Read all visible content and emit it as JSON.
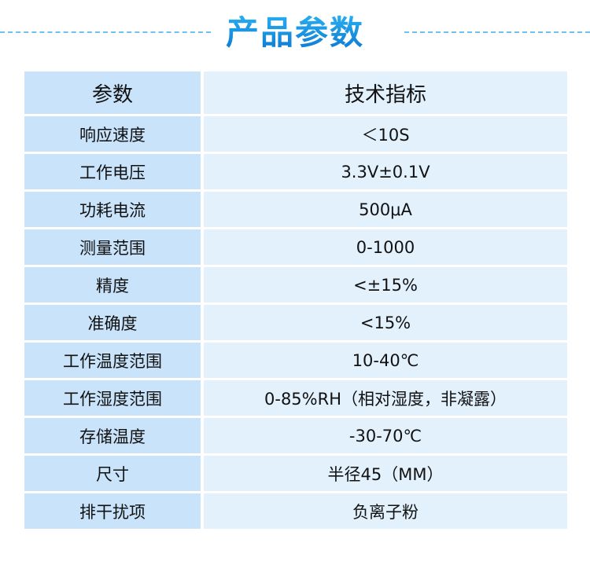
{
  "title": "产品参数",
  "colors": {
    "title": "#1a8fe0",
    "key_cell": "#c8e3fa",
    "value_cell": "#e3f1fd",
    "dash": "#6cc3f2"
  },
  "table": {
    "headers": [
      "参数",
      "技术指标"
    ],
    "rows": [
      {
        "param": "响应速度",
        "value": "＜10S"
      },
      {
        "param": "工作电压",
        "value": "3.3V±0.1V"
      },
      {
        "param": "功耗电流",
        "value": "500μA"
      },
      {
        "param": "测量范围",
        "value": "0-1000"
      },
      {
        "param": "精度",
        "value": "<±15%"
      },
      {
        "param": "准确度",
        "value": "<15%"
      },
      {
        "param": "工作温度范围",
        "value": "10-40℃"
      },
      {
        "param": "工作湿度范围",
        "value": "0-85%RH（相对湿度，非凝露）"
      },
      {
        "param": "存储温度",
        "value": "-30-70℃"
      },
      {
        "param": "尺寸",
        "value": "半径45（MM）"
      },
      {
        "param": "排干扰项",
        "value": "负离子粉"
      }
    ]
  }
}
